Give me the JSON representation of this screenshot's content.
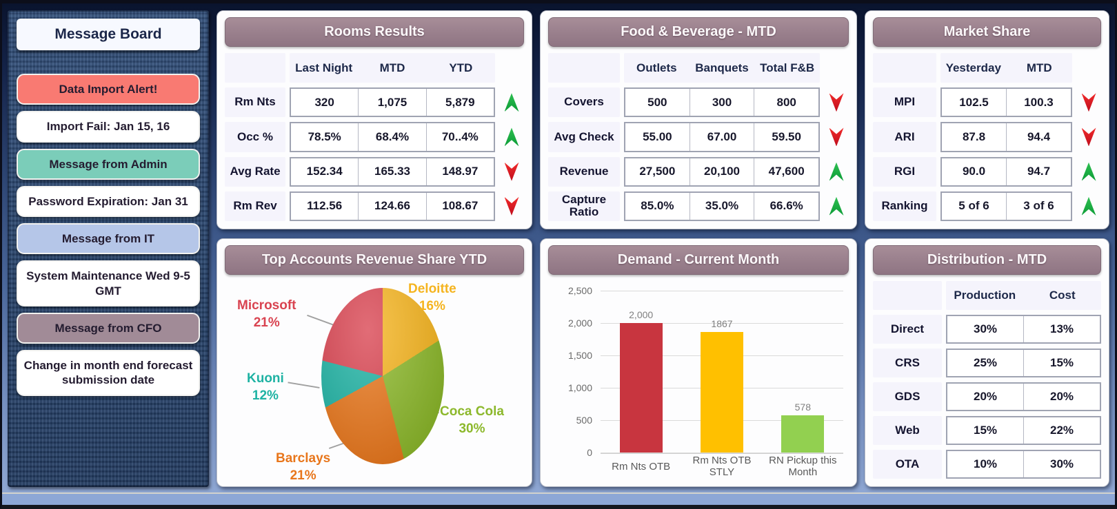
{
  "colors": {
    "panel_header": "#997f8c",
    "trend_up": "#0b9c36",
    "trend_down": "#bf0d1d",
    "alert_button": "#f97a72",
    "admin_button": "#7bcdb9",
    "it_button": "#b5c6e8",
    "cfo_button": "#a18b97"
  },
  "message_board": {
    "title": "Message Board",
    "items": [
      {
        "label": "Data Import Alert!",
        "type": "alert"
      },
      {
        "label": "Import Fail: Jan 15, 16",
        "type": "plain"
      },
      {
        "label": "Message from Admin",
        "type": "admin"
      },
      {
        "label": "Password Expiration: Jan 31",
        "type": "plain"
      },
      {
        "label": "Message from IT",
        "type": "it"
      },
      {
        "label": "System Maintenance Wed 9-5 GMT",
        "type": "plain"
      },
      {
        "label": "Message from CFO",
        "type": "cfo"
      },
      {
        "label": "Change in month end forecast submission date",
        "type": "plain"
      }
    ]
  },
  "rooms_results": {
    "title": "Rooms Results",
    "columns": [
      "Last Night",
      "MTD",
      "YTD"
    ],
    "rows": [
      {
        "label": "Rm Nts",
        "values": [
          "320",
          "1,075",
          "5,879"
        ],
        "trend": "up"
      },
      {
        "label": "Occ %",
        "values": [
          "78.5%",
          "68.4%",
          "70..4%"
        ],
        "trend": "up"
      },
      {
        "label": "Avg Rate",
        "values": [
          "152.34",
          "165.33",
          "148.97"
        ],
        "trend": "down"
      },
      {
        "label": "Rm Rev",
        "values": [
          "112.56",
          "124.66",
          "108.67"
        ],
        "trend": "down"
      }
    ]
  },
  "food_beverage": {
    "title": "Food & Beverage - MTD",
    "columns": [
      "Outlets",
      "Banquets",
      "Total F&B"
    ],
    "rows": [
      {
        "label": "Covers",
        "values": [
          "500",
          "300",
          "800"
        ],
        "trend": "down"
      },
      {
        "label": "Avg Check",
        "values": [
          "55.00",
          "67.00",
          "59.50"
        ],
        "trend": "down"
      },
      {
        "label": "Revenue",
        "values": [
          "27,500",
          "20,100",
          "47,600"
        ],
        "trend": "up"
      },
      {
        "label": "Capture Ratio",
        "values": [
          "85.0%",
          "35.0%",
          "66.6%"
        ],
        "trend": "up"
      }
    ]
  },
  "market_share": {
    "title": "Market Share",
    "columns": [
      "Yesterday",
      "MTD"
    ],
    "rows": [
      {
        "label": "MPI",
        "values": [
          "102.5",
          "100.3"
        ],
        "trend": "down"
      },
      {
        "label": "ARI",
        "values": [
          "87.8",
          "94.4"
        ],
        "trend": "down"
      },
      {
        "label": "RGI",
        "values": [
          "90.0",
          "94.7"
        ],
        "trend": "up"
      },
      {
        "label": "Ranking",
        "values": [
          "5 of 6",
          "3 of 6"
        ],
        "trend": "up"
      }
    ]
  },
  "distribution": {
    "title": "Distribution - MTD",
    "columns": [
      "Production",
      "Cost"
    ],
    "rows": [
      {
        "label": "Direct",
        "values": [
          "30%",
          "13%"
        ],
        "trend": null
      },
      {
        "label": "CRS",
        "values": [
          "25%",
          "15%"
        ],
        "trend": null
      },
      {
        "label": "GDS",
        "values": [
          "20%",
          "20%"
        ],
        "trend": null
      },
      {
        "label": "Web",
        "values": [
          "15%",
          "22%"
        ],
        "trend": null
      },
      {
        "label": "OTA",
        "values": [
          "10%",
          "30%"
        ],
        "trend": null
      }
    ]
  },
  "chart_data": [
    {
      "type": "pie",
      "title": "Top Accounts Revenue Share YTD",
      "start_angle_deg": 0,
      "direction": "clockwise",
      "legend_position": "callout-labels",
      "slices": [
        {
          "name": "Deloitte",
          "value": 16,
          "pct": "16%",
          "color": "#f5b41f"
        },
        {
          "name": "Coca Cola",
          "value": 30,
          "pct": "30%",
          "color": "#8cb82b"
        },
        {
          "name": "Barclays",
          "value": 21,
          "pct": "21%",
          "color": "#e8761b"
        },
        {
          "name": "Kuoni",
          "value": 12,
          "pct": "12%",
          "color": "#1eb2a3"
        },
        {
          "name": "Microsoft",
          "value": 21,
          "pct": "21%",
          "color": "#d94350"
        }
      ]
    },
    {
      "type": "bar",
      "title": "Demand - Current Month",
      "categories": [
        "Rm Nts OTB",
        "Rm Nts OTB STLY",
        "RN Pickup this Month"
      ],
      "values": [
        2000,
        1867,
        578
      ],
      "value_labels": [
        "2,000",
        "1867",
        "578"
      ],
      "bar_colors": [
        "#c8353f",
        "#ffc000",
        "#92d050"
      ],
      "xlabel": "",
      "ylabel": "",
      "ylim": [
        0,
        2500
      ],
      "yticks": [
        "2,500",
        "2,000",
        "1,500",
        "1,000",
        "500",
        "0"
      ],
      "grid": true,
      "legend_position": "none"
    }
  ]
}
